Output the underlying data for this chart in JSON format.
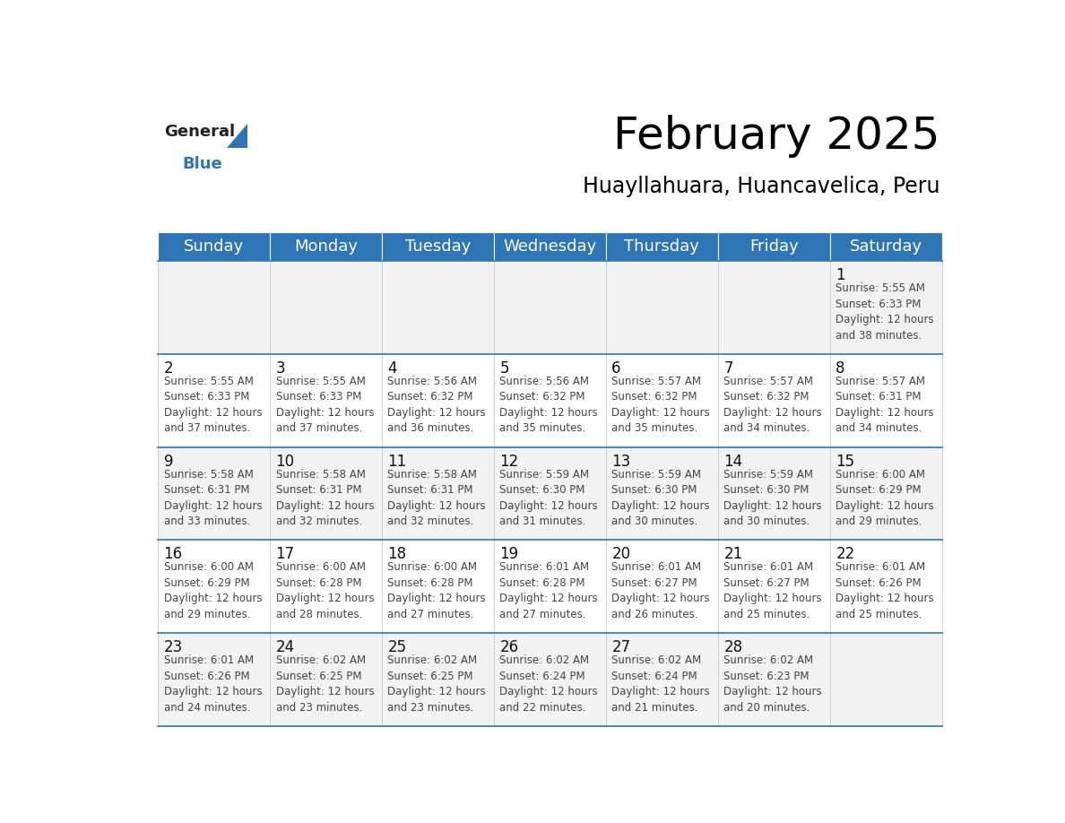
{
  "title": "February 2025",
  "subtitle": "Huayllahuara, Huancavelica, Peru",
  "header_color": "#2e75b6",
  "header_text_color": "#ffffff",
  "cell_bg_even": "#f2f2f2",
  "cell_bg_odd": "#ffffff",
  "border_color": "#2e75b6",
  "day_headers": [
    "Sunday",
    "Monday",
    "Tuesday",
    "Wednesday",
    "Thursday",
    "Friday",
    "Saturday"
  ],
  "title_fontsize": 36,
  "subtitle_fontsize": 17,
  "day_header_fontsize": 13,
  "day_num_fontsize": 12,
  "cell_text_fontsize": 8.5,
  "logo_general_fontsize": 13,
  "logo_blue_fontsize": 13,
  "calendar_data": [
    [
      null,
      null,
      null,
      null,
      null,
      null,
      {
        "day": 1,
        "sunrise": "5:55 AM",
        "sunset": "6:33 PM",
        "daylight_hours": 12,
        "daylight_minutes": 38
      }
    ],
    [
      {
        "day": 2,
        "sunrise": "5:55 AM",
        "sunset": "6:33 PM",
        "daylight_hours": 12,
        "daylight_minutes": 37
      },
      {
        "day": 3,
        "sunrise": "5:55 AM",
        "sunset": "6:33 PM",
        "daylight_hours": 12,
        "daylight_minutes": 37
      },
      {
        "day": 4,
        "sunrise": "5:56 AM",
        "sunset": "6:32 PM",
        "daylight_hours": 12,
        "daylight_minutes": 36
      },
      {
        "day": 5,
        "sunrise": "5:56 AM",
        "sunset": "6:32 PM",
        "daylight_hours": 12,
        "daylight_minutes": 35
      },
      {
        "day": 6,
        "sunrise": "5:57 AM",
        "sunset": "6:32 PM",
        "daylight_hours": 12,
        "daylight_minutes": 35
      },
      {
        "day": 7,
        "sunrise": "5:57 AM",
        "sunset": "6:32 PM",
        "daylight_hours": 12,
        "daylight_minutes": 34
      },
      {
        "day": 8,
        "sunrise": "5:57 AM",
        "sunset": "6:31 PM",
        "daylight_hours": 12,
        "daylight_minutes": 34
      }
    ],
    [
      {
        "day": 9,
        "sunrise": "5:58 AM",
        "sunset": "6:31 PM",
        "daylight_hours": 12,
        "daylight_minutes": 33
      },
      {
        "day": 10,
        "sunrise": "5:58 AM",
        "sunset": "6:31 PM",
        "daylight_hours": 12,
        "daylight_minutes": 32
      },
      {
        "day": 11,
        "sunrise": "5:58 AM",
        "sunset": "6:31 PM",
        "daylight_hours": 12,
        "daylight_minutes": 32
      },
      {
        "day": 12,
        "sunrise": "5:59 AM",
        "sunset": "6:30 PM",
        "daylight_hours": 12,
        "daylight_minutes": 31
      },
      {
        "day": 13,
        "sunrise": "5:59 AM",
        "sunset": "6:30 PM",
        "daylight_hours": 12,
        "daylight_minutes": 30
      },
      {
        "day": 14,
        "sunrise": "5:59 AM",
        "sunset": "6:30 PM",
        "daylight_hours": 12,
        "daylight_minutes": 30
      },
      {
        "day": 15,
        "sunrise": "6:00 AM",
        "sunset": "6:29 PM",
        "daylight_hours": 12,
        "daylight_minutes": 29
      }
    ],
    [
      {
        "day": 16,
        "sunrise": "6:00 AM",
        "sunset": "6:29 PM",
        "daylight_hours": 12,
        "daylight_minutes": 29
      },
      {
        "day": 17,
        "sunrise": "6:00 AM",
        "sunset": "6:28 PM",
        "daylight_hours": 12,
        "daylight_minutes": 28
      },
      {
        "day": 18,
        "sunrise": "6:00 AM",
        "sunset": "6:28 PM",
        "daylight_hours": 12,
        "daylight_minutes": 27
      },
      {
        "day": 19,
        "sunrise": "6:01 AM",
        "sunset": "6:28 PM",
        "daylight_hours": 12,
        "daylight_minutes": 27
      },
      {
        "day": 20,
        "sunrise": "6:01 AM",
        "sunset": "6:27 PM",
        "daylight_hours": 12,
        "daylight_minutes": 26
      },
      {
        "day": 21,
        "sunrise": "6:01 AM",
        "sunset": "6:27 PM",
        "daylight_hours": 12,
        "daylight_minutes": 25
      },
      {
        "day": 22,
        "sunrise": "6:01 AM",
        "sunset": "6:26 PM",
        "daylight_hours": 12,
        "daylight_minutes": 25
      }
    ],
    [
      {
        "day": 23,
        "sunrise": "6:01 AM",
        "sunset": "6:26 PM",
        "daylight_hours": 12,
        "daylight_minutes": 24
      },
      {
        "day": 24,
        "sunrise": "6:02 AM",
        "sunset": "6:25 PM",
        "daylight_hours": 12,
        "daylight_minutes": 23
      },
      {
        "day": 25,
        "sunrise": "6:02 AM",
        "sunset": "6:25 PM",
        "daylight_hours": 12,
        "daylight_minutes": 23
      },
      {
        "day": 26,
        "sunrise": "6:02 AM",
        "sunset": "6:24 PM",
        "daylight_hours": 12,
        "daylight_minutes": 22
      },
      {
        "day": 27,
        "sunrise": "6:02 AM",
        "sunset": "6:24 PM",
        "daylight_hours": 12,
        "daylight_minutes": 21
      },
      {
        "day": 28,
        "sunrise": "6:02 AM",
        "sunset": "6:23 PM",
        "daylight_hours": 12,
        "daylight_minutes": 20
      },
      null
    ]
  ]
}
